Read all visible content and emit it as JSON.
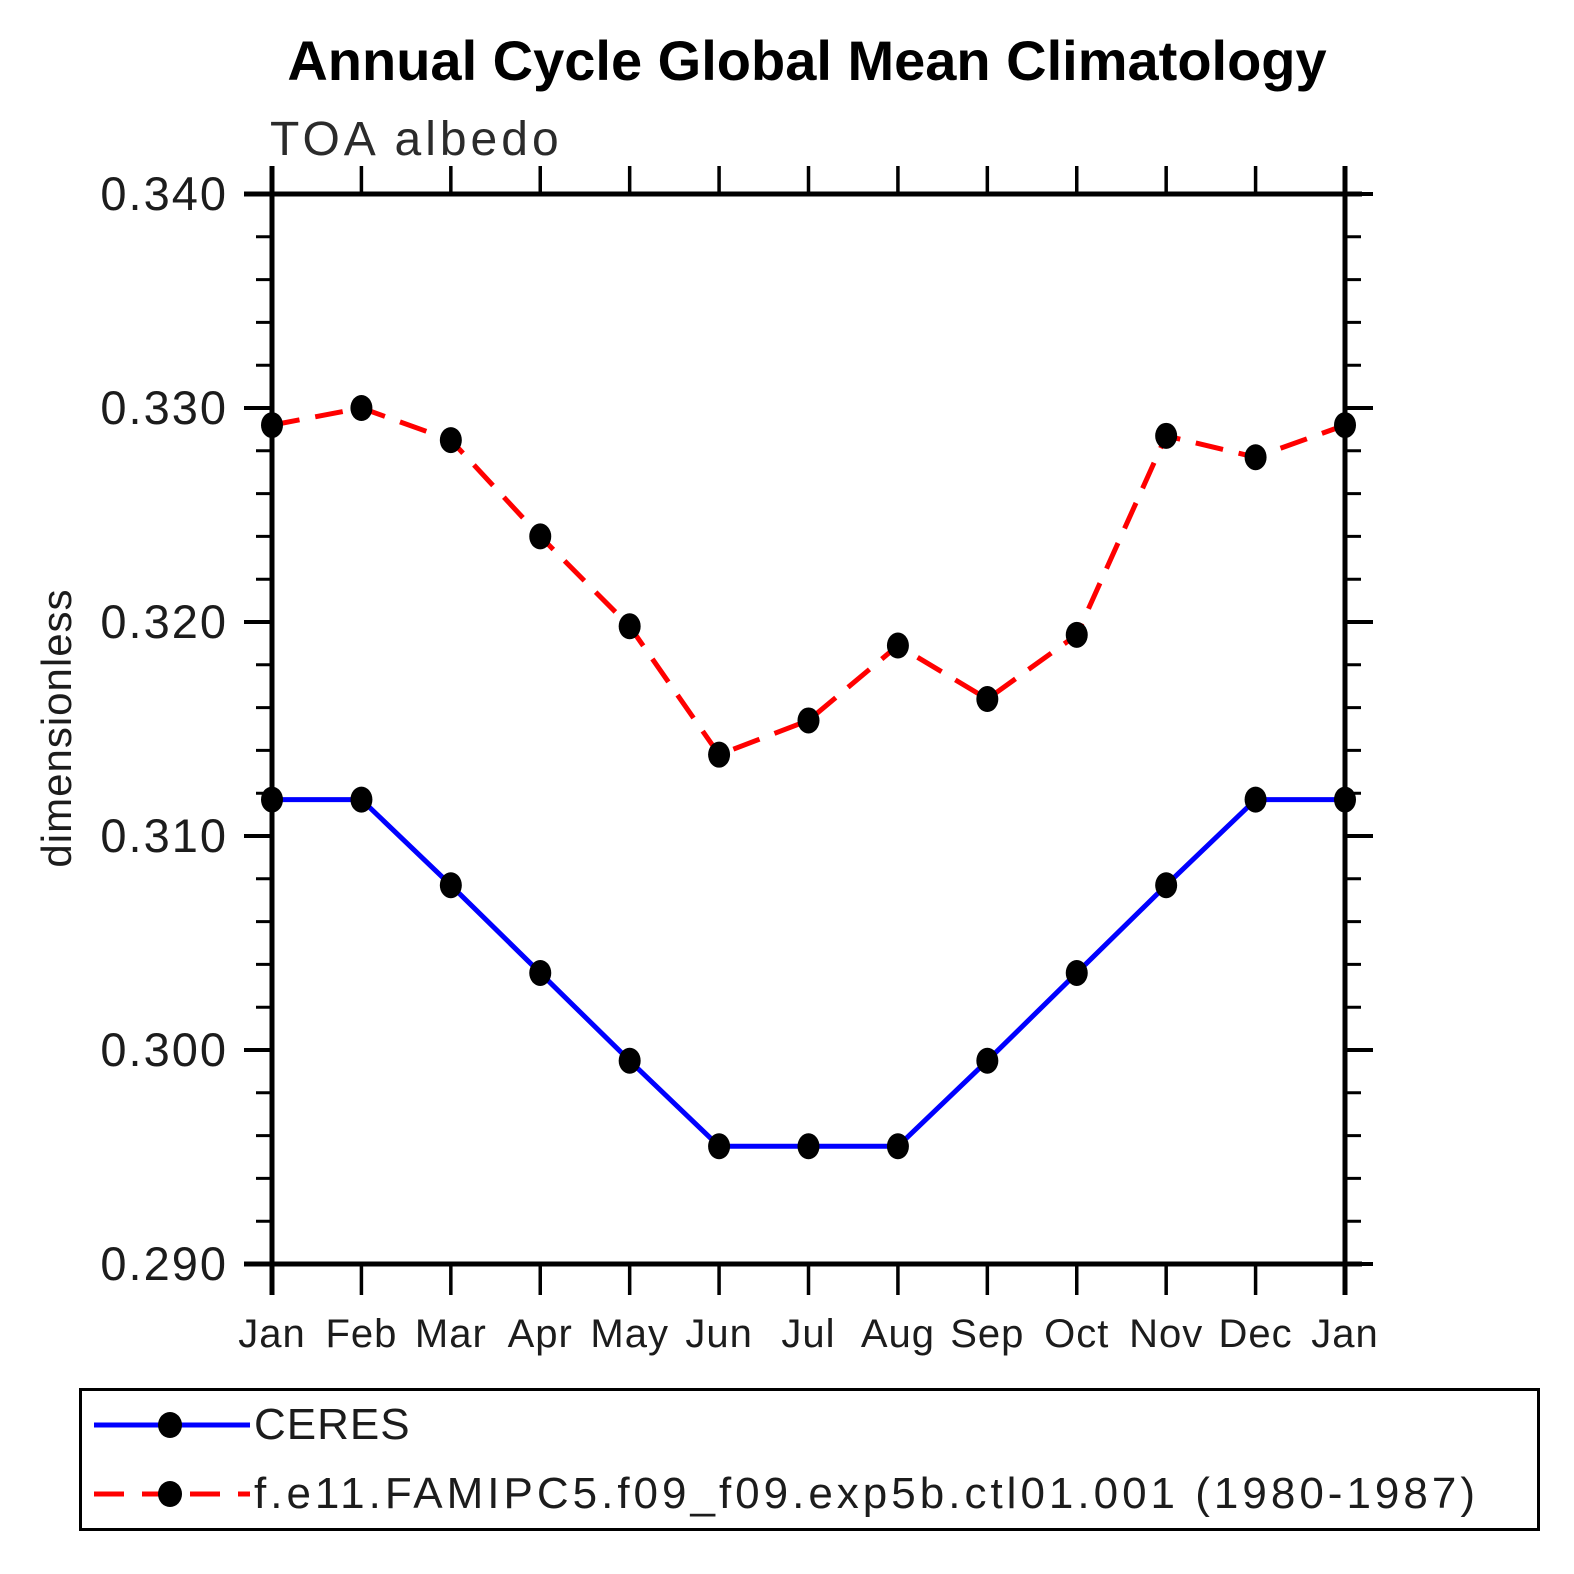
{
  "title": "Annual Cycle Global Mean Climatology",
  "subtitle": "TOA albedo",
  "y_axis": {
    "label": "dimensionless",
    "ticks": [
      {
        "value": 0.34,
        "label": "0.340"
      },
      {
        "value": 0.33,
        "label": "0.330"
      },
      {
        "value": 0.32,
        "label": "0.320"
      },
      {
        "value": 0.31,
        "label": "0.310"
      },
      {
        "value": 0.3,
        "label": "0.300"
      },
      {
        "value": 0.29,
        "label": "0.290"
      }
    ]
  },
  "x_axis": {
    "tick_labels": [
      "Jan",
      "Feb",
      "Mar",
      "Apr",
      "May",
      "Jun",
      "Jul",
      "Aug",
      "Sep",
      "Oct",
      "Nov",
      "Dec",
      "Jan"
    ]
  },
  "legend": {
    "items": [
      {
        "label": "CERES",
        "color": "#0000ff",
        "style": "solid",
        "marker_color": "#000000"
      },
      {
        "label": "f.e11.FAMIPC5.f09_f09.exp5b.ctl01.001 (1980-1987)",
        "color": "#ff0000",
        "style": "dashed",
        "marker_color": "#000000"
      }
    ]
  },
  "chart_data": {
    "type": "line",
    "title": "Annual Cycle Global Mean Climatology",
    "subtitle": "TOA albedo",
    "ylabel": "dimensionless",
    "categories": [
      "Jan",
      "Feb",
      "Mar",
      "Apr",
      "May",
      "Jun",
      "Jul",
      "Aug",
      "Sep",
      "Oct",
      "Nov",
      "Dec",
      "Jan"
    ],
    "ylim": [
      0.29,
      0.34
    ],
    "y_major_step": 0.01,
    "y_minor_step": 0.002,
    "grid": false,
    "legend_position": "bottom-left-box",
    "series": [
      {
        "name": "CERES",
        "color": "#0000ff",
        "line_style": "solid",
        "marker": "filled-circle",
        "marker_color": "#000000",
        "values": [
          0.3117,
          0.3117,
          0.3077,
          0.3036,
          0.2995,
          0.2955,
          0.2955,
          0.2955,
          0.2995,
          0.3036,
          0.3077,
          0.3117,
          0.3117
        ]
      },
      {
        "name": "f.e11.FAMIPC5.f09_f09.exp5b.ctl01.001 (1980-1987)",
        "color": "#ff0000",
        "line_style": "dashed",
        "marker": "filled-circle",
        "marker_color": "#000000",
        "values": [
          0.3292,
          0.33,
          0.3285,
          0.324,
          0.3198,
          0.3138,
          0.3154,
          0.3189,
          0.3164,
          0.3194,
          0.3287,
          0.3277,
          0.3292
        ]
      }
    ]
  }
}
